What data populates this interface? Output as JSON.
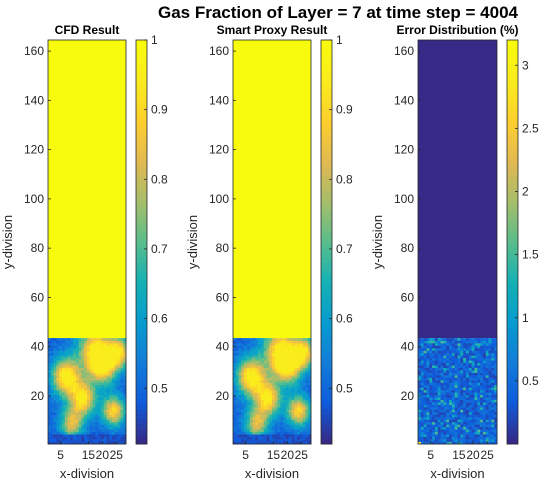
{
  "figure": {
    "title": "Gas Fraction of Layer = 7 at time step = 4004"
  },
  "chart_data": [
    {
      "type": "heatmap",
      "title": "CFD Result",
      "xlabel": "x-division",
      "ylabel": "y-division",
      "grid": false,
      "xlim": [
        0.5,
        28.5
      ],
      "ylim": [
        0.5,
        164.5
      ],
      "xticks": [
        5,
        15,
        20,
        25
      ],
      "xtick_labels": [
        "5",
        "15",
        "20",
        "25"
      ],
      "yticks": [
        20,
        40,
        60,
        80,
        100,
        120,
        140,
        160
      ],
      "ytick_labels": [
        "20",
        "40",
        "60",
        "80",
        "100",
        "120",
        "140",
        "160"
      ],
      "colorbar": {
        "min": 0.42,
        "max": 1.0,
        "ticks": [
          0.5,
          0.6,
          0.7,
          0.8,
          0.9,
          1
        ],
        "tick_labels": [
          "0.5",
          "0.6",
          "0.7",
          "0.8",
          "0.9",
          "1"
        ]
      },
      "colormap": "parula",
      "field_summary": {
        "uniform_region_y_range": [
          44,
          164
        ],
        "uniform_value": 1.0,
        "mixed_region_y_range": [
          1,
          43
        ],
        "mixed_value_range": [
          0.42,
          0.95
        ]
      }
    },
    {
      "type": "heatmap",
      "title": "Smart Proxy Result",
      "xlabel": "x-division",
      "ylabel": "y-division",
      "grid": false,
      "xlim": [
        0.5,
        28.5
      ],
      "ylim": [
        0.5,
        164.5
      ],
      "xticks": [
        5,
        15,
        20,
        25
      ],
      "xtick_labels": [
        "5",
        "15",
        "20",
        "25"
      ],
      "yticks": [
        20,
        40,
        60,
        80,
        100,
        120,
        140,
        160
      ],
      "ytick_labels": [
        "20",
        "40",
        "60",
        "80",
        "100",
        "120",
        "140",
        "160"
      ],
      "colorbar": {
        "min": 0.42,
        "max": 1.0,
        "ticks": [
          0.5,
          0.6,
          0.7,
          0.8,
          0.9,
          1
        ],
        "tick_labels": [
          "0.5",
          "0.6",
          "0.7",
          "0.8",
          "0.9",
          "1"
        ]
      },
      "colormap": "parula",
      "field_summary": {
        "uniform_region_y_range": [
          44,
          164
        ],
        "uniform_value": 1.0,
        "mixed_region_y_range": [
          1,
          43
        ],
        "mixed_value_range": [
          0.42,
          0.95
        ]
      }
    },
    {
      "type": "heatmap",
      "title": "Error Distribution (%)",
      "xlabel": "x-division",
      "ylabel": "y-division",
      "grid": false,
      "xlim": [
        0.5,
        28.5
      ],
      "ylim": [
        0.5,
        164.5
      ],
      "xticks": [
        5,
        15,
        20,
        25
      ],
      "xtick_labels": [
        "5",
        "15",
        "20",
        "25"
      ],
      "yticks": [
        20,
        40,
        60,
        80,
        100,
        120,
        140,
        160
      ],
      "ytick_labels": [
        "20",
        "40",
        "60",
        "80",
        "100",
        "120",
        "140",
        "160"
      ],
      "colorbar": {
        "min": 0,
        "max": 3.2,
        "ticks": [
          0.5,
          1,
          1.5,
          2,
          2.5,
          3
        ],
        "tick_labels": [
          "0.5",
          "1",
          "1.5",
          "2",
          "2.5",
          "3"
        ]
      },
      "colormap": "parula",
      "field_summary": {
        "uniform_region_y_range": [
          44,
          164
        ],
        "uniform_value": 0,
        "mixed_region_y_range": [
          1,
          43
        ],
        "mixed_value_range": [
          0,
          3.2
        ]
      }
    }
  ]
}
